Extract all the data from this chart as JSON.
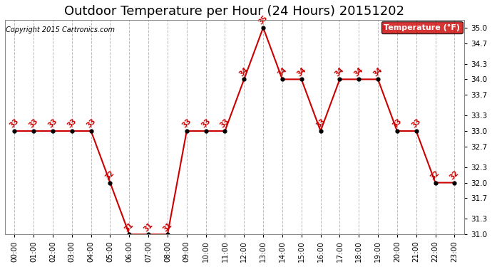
{
  "title": "Outdoor Temperature per Hour (24 Hours) 20151202",
  "copyright": "Copyright 2015 Cartronics.com",
  "legend_label": "Temperature (°F)",
  "hours": [
    "00:00",
    "01:00",
    "02:00",
    "03:00",
    "04:00",
    "05:00",
    "06:00",
    "07:00",
    "08:00",
    "09:00",
    "10:00",
    "11:00",
    "12:00",
    "13:00",
    "14:00",
    "15:00",
    "16:00",
    "17:00",
    "18:00",
    "19:00",
    "20:00",
    "21:00",
    "22:00",
    "23:00"
  ],
  "temperatures": [
    33,
    33,
    33,
    33,
    33,
    32,
    31,
    31,
    31,
    33,
    33,
    33,
    34,
    35,
    34,
    34,
    33,
    34,
    34,
    34,
    33,
    33,
    32,
    32
  ],
  "line_color": "#cc0000",
  "marker_color": "#000000",
  "background_color": "#ffffff",
  "grid_color": "#bbbbbb",
  "ylim_min": 31.0,
  "ylim_max": 35.15,
  "yticks": [
    31.0,
    31.3,
    31.7,
    32.0,
    32.3,
    32.7,
    33.0,
    33.3,
    33.7,
    34.0,
    34.3,
    34.7,
    35.0
  ],
  "legend_bg": "#cc0000",
  "legend_text_color": "#ffffff",
  "title_fontsize": 13,
  "label_fontsize": 7.5,
  "annotation_fontsize": 7,
  "copyright_fontsize": 7
}
